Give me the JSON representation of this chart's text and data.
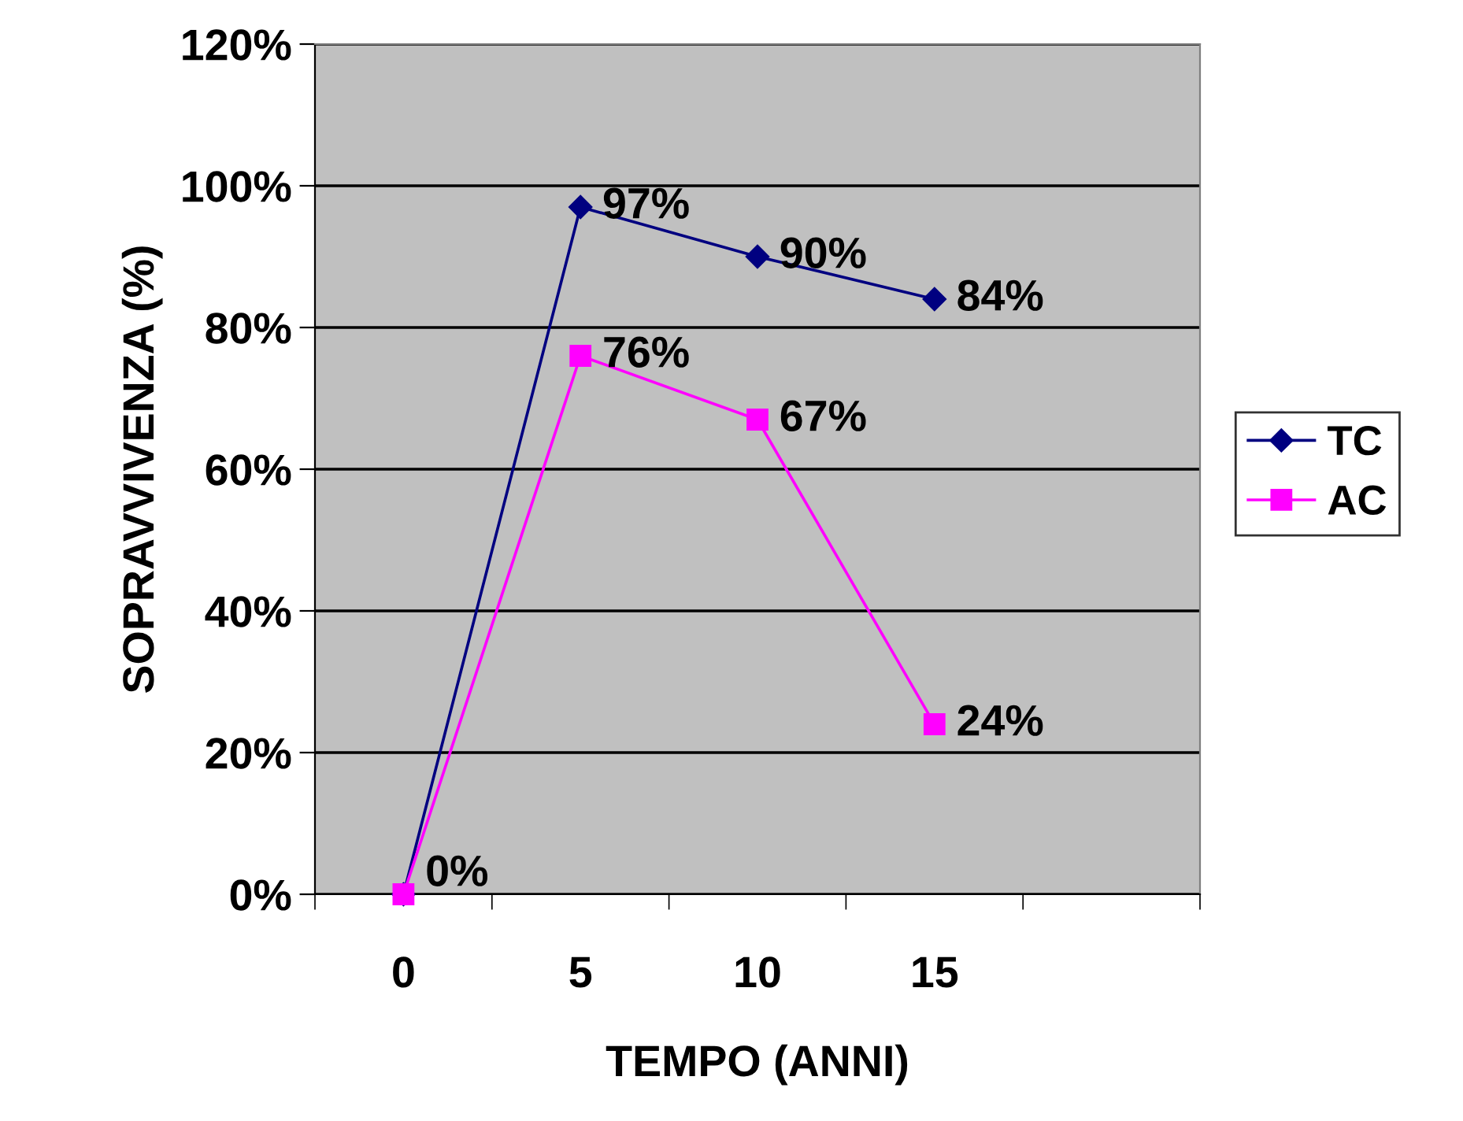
{
  "chart_data": {
    "type": "line",
    "xlabel": "TEMPO (ANNI)",
    "ylabel": "SOPRAVVIVENZA (%)",
    "categories": [
      "0",
      "5",
      "10",
      "15",
      null
    ],
    "series": [
      {
        "name": "TC",
        "color": "#000080",
        "marker": "diamond",
        "values": [
          0,
          97,
          90,
          84,
          null
        ],
        "value_labels": [
          null,
          "97%",
          "90%",
          "84%",
          null
        ]
      },
      {
        "name": "AC",
        "color": "#ff00ff",
        "marker": "square",
        "values": [
          0,
          76,
          67,
          24,
          null
        ],
        "value_labels": [
          "0%",
          "76%",
          "67%",
          "24%",
          null
        ]
      }
    ],
    "ylim": [
      0,
      120
    ],
    "yticks": [
      {
        "value": 0,
        "label": "0%"
      },
      {
        "value": 20,
        "label": "20%"
      },
      {
        "value": 40,
        "label": "40%"
      },
      {
        "value": 60,
        "label": "60%"
      },
      {
        "value": 80,
        "label": "80%"
      },
      {
        "value": 100,
        "label": "100%"
      },
      {
        "value": 120,
        "label": "120%"
      }
    ],
    "grid": "y",
    "legend": "right",
    "line_style": "solid"
  }
}
